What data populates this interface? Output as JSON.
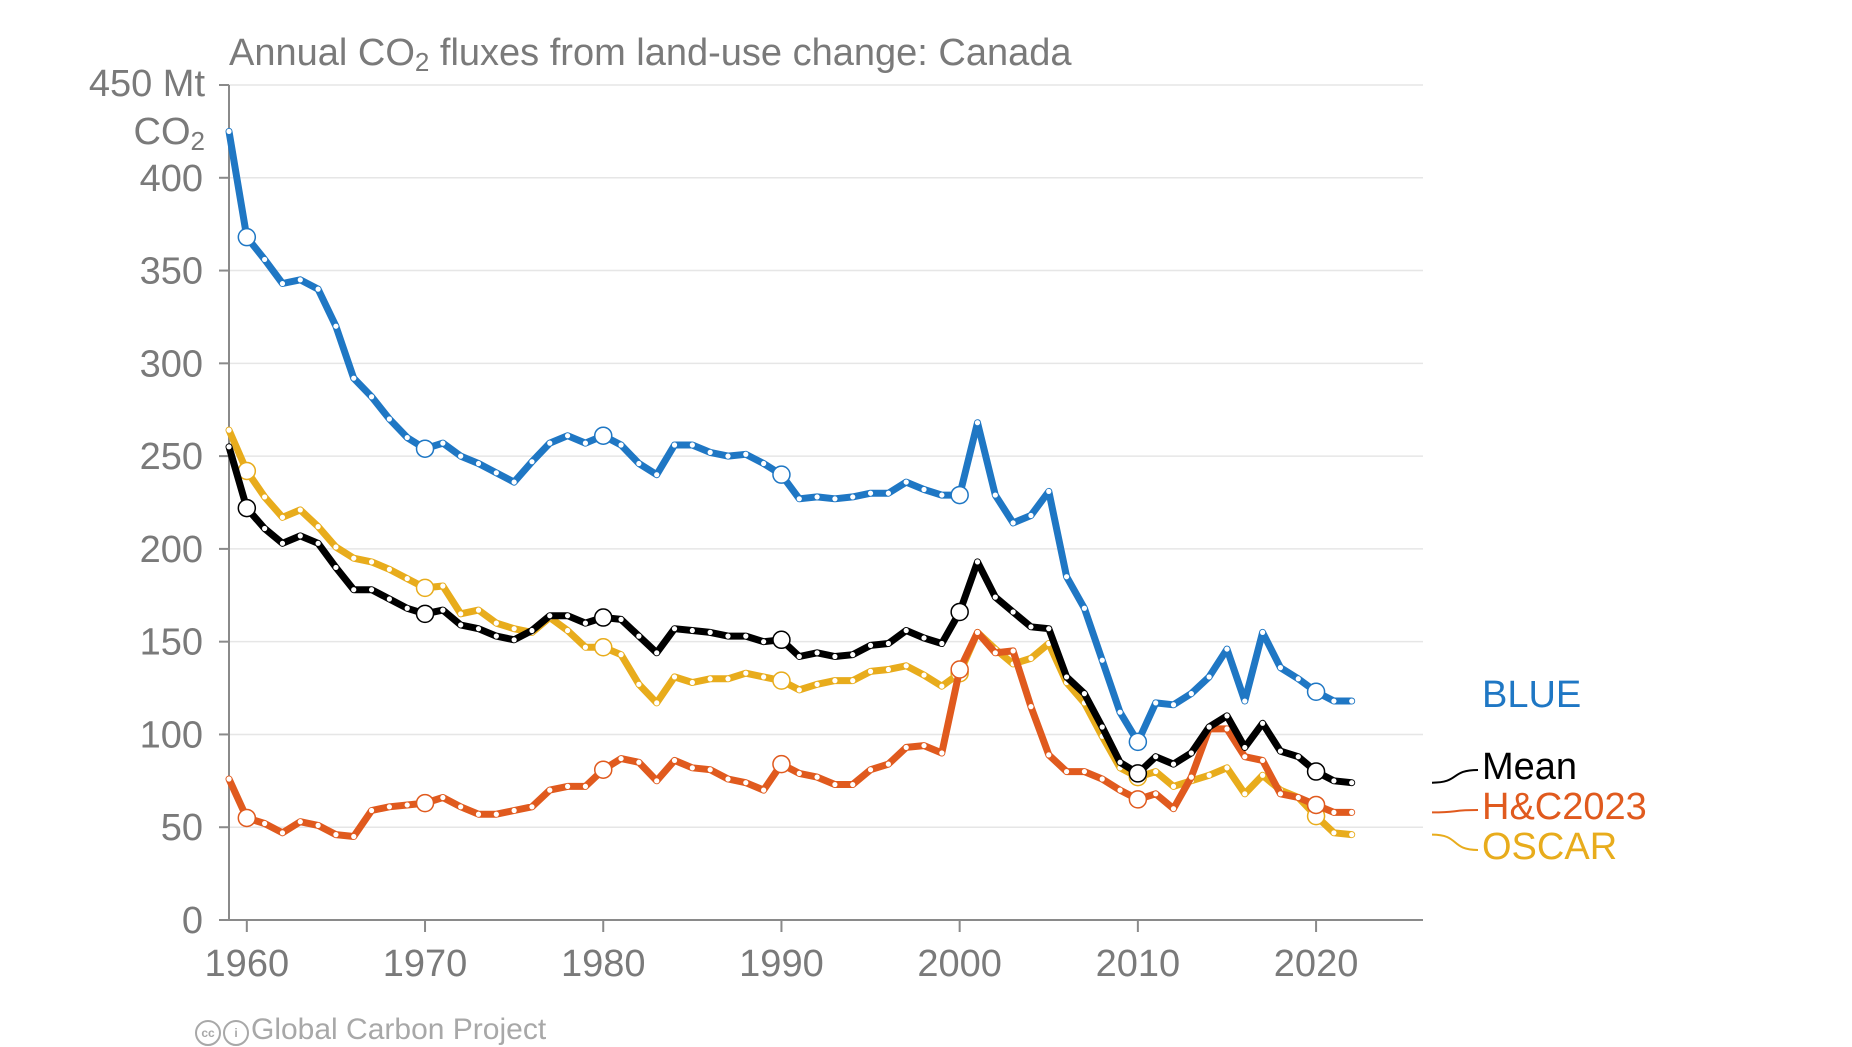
{
  "title": {
    "prefix": "Annual CO",
    "sub": "2",
    "suffix": " fluxes from land-use change: Canada"
  },
  "ylabel": {
    "line1": "450 Mt",
    "line2_prefix": "CO",
    "line2_sub": "2"
  },
  "footer": {
    "text": "Global Carbon Project",
    "icons": [
      "creative-commons-icon",
      "attribution-icon"
    ]
  },
  "chart_data": {
    "type": "line",
    "xlim": [
      1959,
      2026
    ],
    "ylim": [
      0,
      450
    ],
    "grid": "horizontal",
    "x_ticks": [
      "1960",
      "1970",
      "1980",
      "1990",
      "2000",
      "2010",
      "2020"
    ],
    "x_tick_values": [
      1960,
      1970,
      1980,
      1990,
      2000,
      2010,
      2020
    ],
    "y_ticks": [
      "0",
      "50",
      "100",
      "150",
      "200",
      "250",
      "300",
      "350",
      "400"
    ],
    "y_tick_values": [
      0,
      50,
      100,
      150,
      200,
      250,
      300,
      350,
      400
    ],
    "x": [
      1959,
      1960,
      1961,
      1962,
      1963,
      1964,
      1965,
      1966,
      1967,
      1968,
      1969,
      1970,
      1971,
      1972,
      1973,
      1974,
      1975,
      1976,
      1977,
      1978,
      1979,
      1980,
      1981,
      1982,
      1983,
      1984,
      1985,
      1986,
      1987,
      1988,
      1989,
      1990,
      1991,
      1992,
      1993,
      1994,
      1995,
      1996,
      1997,
      1998,
      1999,
      2000,
      2001,
      2002,
      2003,
      2004,
      2005,
      2006,
      2007,
      2008,
      2009,
      2010,
      2011,
      2012,
      2013,
      2014,
      2015,
      2016,
      2017,
      2018,
      2019,
      2020,
      2021,
      2022
    ],
    "series": [
      {
        "name": "BLUE",
        "color": "#1f77c4",
        "values": [
          425,
          368,
          356,
          343,
          345,
          340,
          320,
          292,
          282,
          270,
          260,
          254,
          257,
          250,
          246,
          241,
          236,
          247,
          257,
          261,
          257,
          261,
          256,
          246,
          240,
          256,
          256,
          252,
          250,
          251,
          246,
          240,
          227,
          228,
          227,
          228,
          230,
          230,
          236,
          232,
          229,
          229,
          268,
          229,
          214,
          218,
          231,
          185,
          168,
          140,
          112,
          96,
          117,
          116,
          122,
          131,
          146,
          118,
          155,
          136,
          130,
          123,
          118,
          118
        ]
      },
      {
        "name": "Mean",
        "color": "#000000",
        "values": [
          255,
          222,
          211,
          203,
          207,
          203,
          190,
          178,
          178,
          173,
          168,
          165,
          167,
          159,
          157,
          153,
          151,
          156,
          164,
          164,
          160,
          163,
          162,
          153,
          144,
          157,
          156,
          155,
          153,
          153,
          150,
          151,
          142,
          144,
          142,
          143,
          148,
          149,
          156,
          152,
          149,
          166,
          193,
          174,
          166,
          158,
          157,
          131,
          122,
          104,
          85,
          79,
          88,
          84,
          90,
          104,
          110,
          93,
          106,
          91,
          88,
          80,
          75,
          74
        ]
      },
      {
        "name": "H&C2023",
        "color": "#e05a1e",
        "values": [
          76,
          55,
          52,
          47,
          53,
          51,
          46,
          45,
          59,
          61,
          62,
          63,
          66,
          61,
          57,
          57,
          59,
          61,
          70,
          72,
          72,
          81,
          87,
          85,
          75,
          86,
          82,
          81,
          76,
          74,
          70,
          84,
          79,
          77,
          73,
          73,
          81,
          84,
          93,
          94,
          90,
          135,
          155,
          144,
          145,
          115,
          89,
          80,
          80,
          76,
          70,
          65,
          68,
          60,
          77,
          103,
          103,
          88,
          86,
          68,
          66,
          62,
          58,
          58
        ]
      },
      {
        "name": "OSCAR",
        "color": "#e8ac1c",
        "values": [
          264,
          242,
          228,
          217,
          221,
          212,
          201,
          195,
          193,
          189,
          184,
          179,
          180,
          165,
          167,
          160,
          157,
          155,
          163,
          156,
          147,
          147,
          143,
          127,
          117,
          131,
          128,
          130,
          130,
          133,
          131,
          129,
          124,
          127,
          129,
          129,
          134,
          135,
          137,
          132,
          126,
          133,
          155,
          146,
          138,
          141,
          149,
          128,
          117,
          99,
          82,
          77,
          80,
          72,
          75,
          78,
          82,
          68,
          78,
          70,
          66,
          56,
          47,
          46
        ]
      }
    ],
    "legend_labels": [
      "BLUE",
      "Mean",
      "H&C2023",
      "OSCAR"
    ],
    "legend_placement": "right"
  }
}
